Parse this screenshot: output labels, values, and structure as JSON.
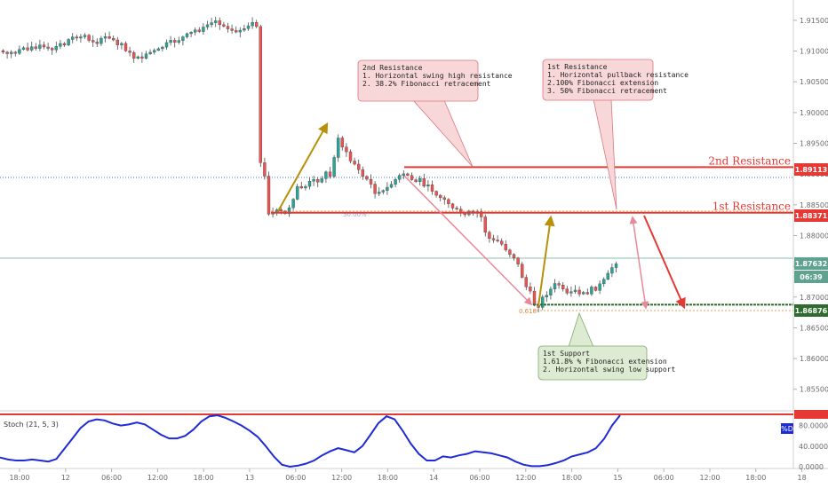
{
  "chart_data": {
    "type": "candlestick",
    "price_axis": {
      "ticks": [
        "1.91500",
        "1.91000",
        "1.90500",
        "1.90000",
        "1.89500",
        "1.89000",
        "1.88500",
        "1.88000",
        "1.87500",
        "1.87000",
        "1.86500",
        "1.86000",
        "1.85500"
      ],
      "ylim": [
        1.8515,
        1.9183
      ]
    },
    "time_axis": {
      "ticks": [
        "18:00",
        "12",
        "06:00",
        "12:00",
        "18:00",
        "13",
        "06:00",
        "12:00",
        "18:00",
        "14",
        "06:00",
        "12:00",
        "18:00",
        "15",
        "06:00",
        "12:00",
        "18:00",
        "18"
      ]
    },
    "price_badges": [
      {
        "value": "1.89113",
        "color": "#e53935"
      },
      {
        "value": "1.88371",
        "color": "#e53935"
      },
      {
        "value": "1.87632",
        "color": "#5fa38e"
      },
      {
        "value": "06:39",
        "color": "#5fa38e"
      },
      {
        "value": "1.86876",
        "color": "#2e6b2e"
      }
    ],
    "levels": [
      {
        "name": "2nd Resistance",
        "price": 1.89113,
        "color": "#e53935"
      },
      {
        "name": "1st Resistance",
        "price": 1.88371,
        "color": "#e53935"
      },
      {
        "name": "",
        "price": 1.86876,
        "color": "#2e6b2e"
      }
    ],
    "current_price": 1.87632,
    "fib_labels": [
      "50.00%",
      "0.618"
    ],
    "callouts": {
      "second_resistance": [
        "2nd Resistance",
        "1. Horizontal swing high resistance",
        "2. 38.2% Fibonacci retracement"
      ],
      "first_resistance": [
        "1st Resistance",
        "1. Horizontal pullback resistance",
        "2.100% Fibonacci extension",
        "3. 50% Fibonacci retracement"
      ],
      "first_support": [
        "1st Support",
        "1.61.8% % Fibonacci extension",
        "2. Horizontal swing low support"
      ]
    },
    "indicator": {
      "name": "Stoch (21, 5, 3)",
      "axis_ticks": [
        "80.0000",
        "40.0000",
        "0.0000"
      ],
      "line_label": "%D",
      "line_color": "#1e2bd6",
      "values": [
        18,
        14,
        12,
        12,
        14,
        12,
        10,
        15,
        35,
        55,
        75,
        88,
        92,
        90,
        84,
        80,
        82,
        86,
        82,
        72,
        62,
        55,
        55,
        60,
        72,
        88,
        98,
        100,
        95,
        88,
        80,
        70,
        58,
        40,
        20,
        4,
        0,
        2,
        6,
        12,
        22,
        30,
        36,
        32,
        28,
        40,
        62,
        85,
        98,
        92,
        70,
        45,
        25,
        12,
        12,
        20,
        18,
        22,
        25,
        30,
        28,
        26,
        22,
        18,
        10,
        4,
        1,
        1,
        3,
        7,
        12,
        20,
        24,
        28,
        36,
        54,
        80,
        100
      ],
      "ylim": [
        0,
        100
      ]
    },
    "colors": {
      "up": "#26a69a",
      "down": "#ef5350",
      "gold_arrow": "#b8900a",
      "pink_arrow": "#e8899a",
      "resistance": "#e53935",
      "support": "#2e6b2e"
    }
  }
}
